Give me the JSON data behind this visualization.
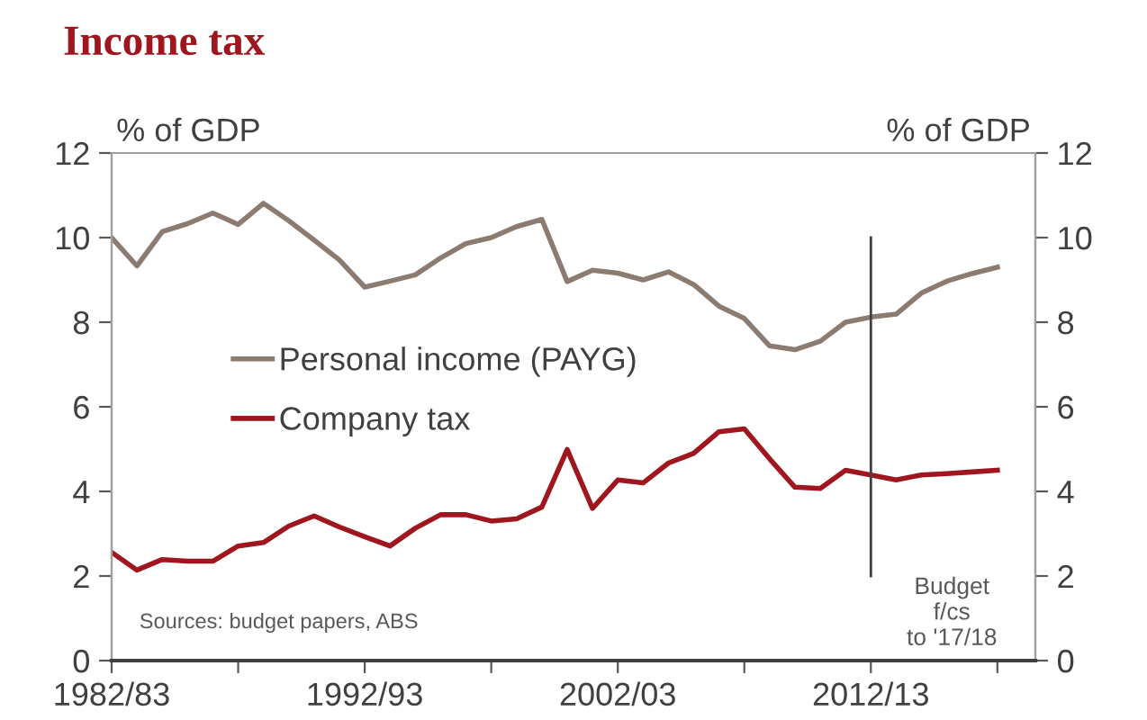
{
  "chart_data": {
    "type": "line",
    "title": "Income tax",
    "ylabel": "% of GDP",
    "y2label": "% of GDP",
    "categories": [
      "1982/83",
      null,
      null,
      null,
      null,
      null,
      null,
      null,
      null,
      null,
      "1992/93",
      null,
      null,
      null,
      null,
      null,
      null,
      null,
      null,
      null,
      "2002/03",
      null,
      null,
      null,
      null,
      null,
      null,
      null,
      null,
      null,
      "2012/13",
      null,
      null,
      null,
      null,
      null
    ],
    "series": [
      {
        "name": "Personal income (PAYG)",
        "color": "#8c7b70",
        "values": [
          10.0,
          9.33,
          10.14,
          10.33,
          10.58,
          10.31,
          10.81,
          10.4,
          9.94,
          9.47,
          8.83,
          8.97,
          9.12,
          9.52,
          9.86,
          10.0,
          10.26,
          10.43,
          8.96,
          9.23,
          9.16,
          9.0,
          9.19,
          8.89,
          8.38,
          8.09,
          7.44,
          7.35,
          7.55,
          8.0,
          8.12,
          8.19,
          8.69,
          8.97,
          9.15,
          9.3
        ]
      },
      {
        "name": "Company tax",
        "color": "#a0161e",
        "values": [
          2.56,
          2.14,
          2.39,
          2.35,
          2.35,
          2.71,
          2.79,
          3.18,
          3.42,
          3.16,
          2.93,
          2.71,
          3.13,
          3.45,
          3.45,
          3.3,
          3.35,
          3.63,
          4.99,
          3.6,
          4.27,
          4.2,
          4.67,
          4.9,
          5.41,
          5.48,
          4.77,
          4.1,
          4.07,
          4.5,
          4.39,
          4.27,
          4.39,
          4.42,
          4.46,
          4.5
        ]
      }
    ],
    "ylim": [
      0,
      12
    ],
    "yticks": [
      0,
      2,
      4,
      6,
      8,
      10,
      12
    ],
    "y2lim": [
      0,
      12
    ],
    "y2ticks": [
      0,
      2,
      4,
      6,
      8,
      10,
      12
    ],
    "ref_lines": [
      {
        "axis": "x",
        "value": "2012/13",
        "label": "Budget\nf/cs\nto '17/18",
        "color": "#404040"
      }
    ],
    "annotations": [
      "Sources: budget papers, ABS"
    ],
    "legend": "center left",
    "grid": false,
    "marker": "none",
    "line_style": "solid"
  }
}
